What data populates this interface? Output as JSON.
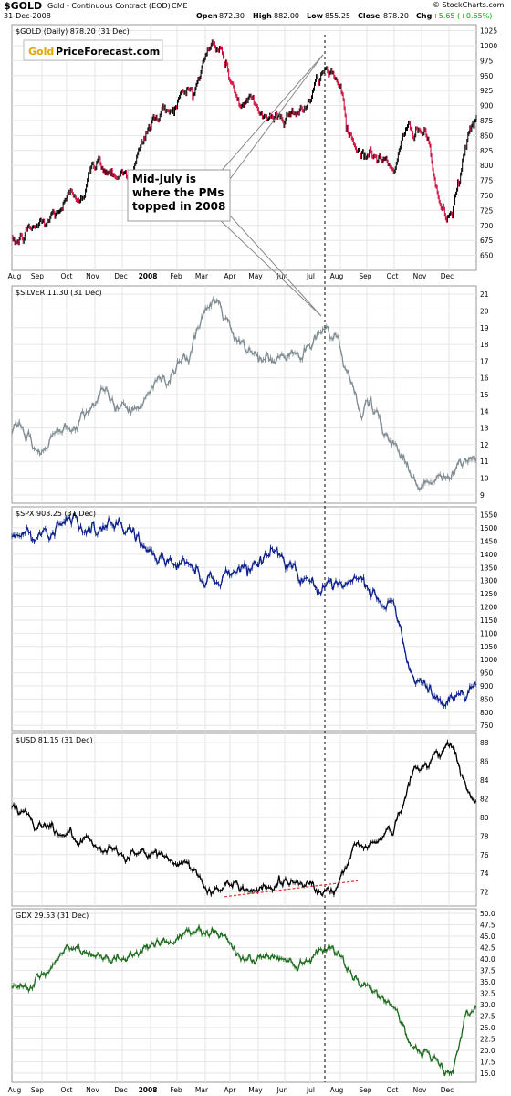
{
  "header": {
    "symbol": "$GOLD",
    "subtitle": "Gold - Continuous Contract (EOD)",
    "exchange": "CME",
    "date": "31-Dec-2008",
    "open_label": "Open",
    "open": "872.30",
    "high_label": "High",
    "high": "882.00",
    "low_label": "Low",
    "low": "855.25",
    "close_label": "Close",
    "close": "878.20",
    "chg_label": "Chg",
    "chg": "+5.65 (+0.65%)",
    "credit": "© StockCharts.com"
  },
  "logo": {
    "part1": "Gold",
    "part2": "PriceForecast.com"
  },
  "annotation": {
    "lines": [
      "Mid-July is",
      "where the PMs",
      "topped in 2008"
    ]
  },
  "x_tick_labels_top": [
    "Aug",
    "Sep",
    "Oct",
    "Nov",
    "Dec",
    "2008",
    "Feb",
    "Mar",
    "Apr",
    "May",
    "Jun",
    "Jul",
    "Aug",
    "Sep",
    "Oct",
    "Nov",
    "Dec"
  ],
  "x_tick_labels_bottom": [
    "Aug",
    "Sep",
    "Oct",
    "Nov",
    "Dec",
    "2008",
    "Feb",
    "Mar",
    "Apr",
    "May",
    "Jun",
    "Jul",
    "Aug",
    "Sep",
    "Oct",
    "Nov",
    "Dec"
  ],
  "colors": {
    "gold_up": "#000000",
    "gold_down": "#cc0033",
    "silver": "#7f8c92",
    "spx": "#0b1f8c",
    "usd": "#000000",
    "gdx": "#1e6b1e",
    "trend": "#e03030"
  },
  "chart_data": [
    {
      "type": "line",
      "title": "$GOLD (Daily) 878.20 (31 Dec)",
      "x": [
        "Aug 2007",
        "Sep 2007",
        "Oct 2007",
        "Nov 2007",
        "Dec 2007",
        "Jan 2008",
        "Feb 2008",
        "Mar 2008",
        "Apr 2008",
        "May 2008",
        "Jun 2008",
        "Jul 2008",
        "Aug 2008",
        "Sep 2008",
        "Oct 2008",
        "Nov 2008",
        "Dec 2008"
      ],
      "series": [
        {
          "values": [
            668,
            700,
            742,
            800,
            790,
            880,
            920,
            1000,
            900,
            880,
            900,
            960,
            830,
            800,
            870,
            710,
            880
          ]
        }
      ],
      "ylim": [
        625,
        1035
      ],
      "y_ticks": [
        650,
        675,
        700,
        725,
        750,
        775,
        800,
        825,
        850,
        875,
        900,
        925,
        950,
        975,
        1000,
        1025
      ]
    },
    {
      "type": "line",
      "title": "$SILVER 11.30 (31 Dec)",
      "x": [
        "Aug 2007",
        "Sep 2007",
        "Oct 2007",
        "Nov 2007",
        "Dec 2007",
        "Jan 2008",
        "Feb 2008",
        "Mar 2008",
        "Apr 2008",
        "May 2008",
        "Jun 2008",
        "Jul 2008",
        "Aug 2008",
        "Sep 2008",
        "Oct 2008",
        "Nov 2008",
        "Dec 2008"
      ],
      "series": [
        {
          "values": [
            12.8,
            11.6,
            13.5,
            14.8,
            14.2,
            15.6,
            17.5,
            20.5,
            17.5,
            17.0,
            17.4,
            19.0,
            14.5,
            12.5,
            9.8,
            10.0,
            11.3
          ]
        }
      ],
      "ylim": [
        8.5,
        21.5
      ],
      "y_ticks": [
        9,
        10,
        11,
        12,
        13,
        14,
        15,
        16,
        17,
        18,
        19,
        20,
        21
      ]
    },
    {
      "type": "line",
      "title": "$SPX 903.25 (31 Dec)",
      "x": [
        "Aug 2007",
        "Sep 2007",
        "Oct 2007",
        "Nov 2007",
        "Dec 2007",
        "Jan 2008",
        "Feb 2008",
        "Mar 2008",
        "Apr 2008",
        "May 2008",
        "Jun 2008",
        "Jul 2008",
        "Aug 2008",
        "Sep 2008",
        "Oct 2008",
        "Nov 2008",
        "Dec 2008"
      ],
      "series": [
        {
          "values": [
            1460,
            1480,
            1550,
            1480,
            1500,
            1380,
            1360,
            1310,
            1360,
            1410,
            1330,
            1240,
            1280,
            1210,
            900,
            840,
            903
          ]
        }
      ],
      "ylim": [
        730,
        1580
      ],
      "y_ticks": [
        750,
        800,
        850,
        900,
        950,
        1000,
        1050,
        1100,
        1150,
        1200,
        1250,
        1300,
        1350,
        1400,
        1450,
        1500,
        1550
      ]
    },
    {
      "type": "line",
      "title": "$USD 81.15 (31 Dec)",
      "x": [
        "Aug 2007",
        "Sep 2007",
        "Oct 2007",
        "Nov 2007",
        "Dec 2007",
        "Jan 2008",
        "Feb 2008",
        "Mar 2008",
        "Apr 2008",
        "May 2008",
        "Jun 2008",
        "Jul 2008",
        "Aug 2008",
        "Sep 2008",
        "Oct 2008",
        "Nov 2008",
        "Dec 2008"
      ],
      "series": [
        {
          "values": [
            81.3,
            79.5,
            78.0,
            76.0,
            76.2,
            75.8,
            75.0,
            72.2,
            72.5,
            72.8,
            73.2,
            72.2,
            77.0,
            78.5,
            85.0,
            88.0,
            81.15
          ]
        }
      ],
      "ylim": [
        70.5,
        89
      ],
      "y_ticks": [
        72,
        74,
        76,
        78,
        80,
        82,
        84,
        86,
        88
      ]
    },
    {
      "type": "line",
      "title": "GDX 29.53 (31 Dec)",
      "x": [
        "Aug 2007",
        "Sep 2007",
        "Oct 2007",
        "Nov 2007",
        "Dec 2007",
        "Jan 2008",
        "Feb 2008",
        "Mar 2008",
        "Apr 2008",
        "May 2008",
        "Jun 2008",
        "Jul 2008",
        "Aug 2008",
        "Sep 2008",
        "Oct 2008",
        "Nov 2008",
        "Dec 2008"
      ],
      "series": [
        {
          "values": [
            33.5,
            36.5,
            42.0,
            40.0,
            41.0,
            44.0,
            45.0,
            47.0,
            40.0,
            40.5,
            40.0,
            44.0,
            34.0,
            31.0,
            20.0,
            16.0,
            29.53
          ]
        }
      ],
      "ylim": [
        13,
        51
      ],
      "y_ticks": [
        15.0,
        17.5,
        20.0,
        22.5,
        25.0,
        27.5,
        30.0,
        32.5,
        35.0,
        37.5,
        40.0,
        42.5,
        45.0,
        47.5,
        50.0
      ]
    }
  ]
}
